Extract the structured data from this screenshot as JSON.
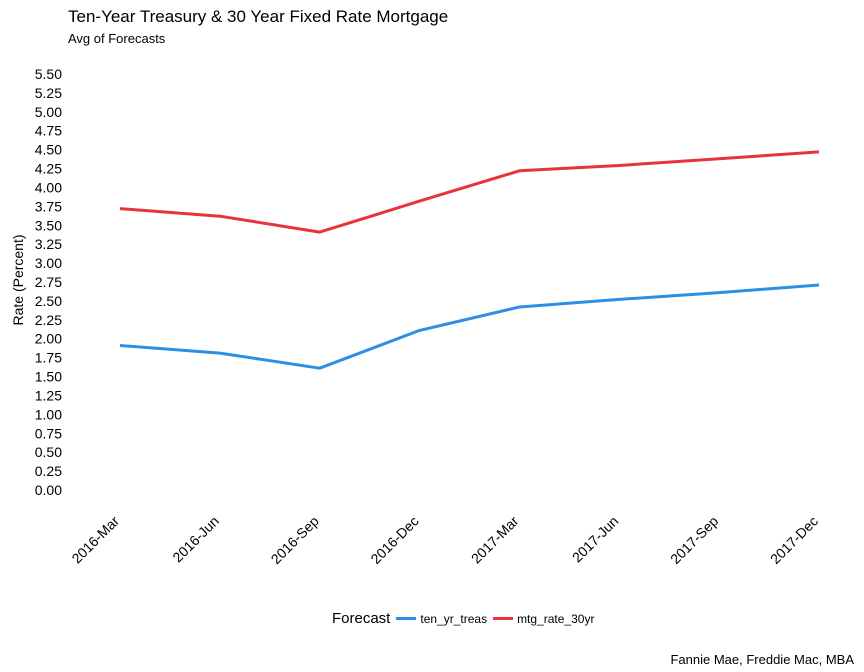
{
  "chart_data": {
    "type": "line",
    "title": "Ten-Year Treasury & 30 Year Fixed Rate Mortgage",
    "subtitle": "Avg of Forecasts",
    "xlabel": "",
    "ylabel": "Rate (Percent)",
    "categories": [
      "2016-Mar",
      "2016-Jun",
      "2016-Sep",
      "2016-Dec",
      "2017-Mar",
      "2017-Jun",
      "2017-Sep",
      "2017-Dec"
    ],
    "ylim": [
      0,
      5.5
    ],
    "y_ticks": [
      "0.00",
      "0.25",
      "0.50",
      "0.75",
      "1.00",
      "1.25",
      "1.50",
      "1.75",
      "2.00",
      "2.25",
      "2.50",
      "2.75",
      "3.00",
      "3.25",
      "3.50",
      "3.75",
      "4.00",
      "4.25",
      "4.50",
      "4.75",
      "5.00",
      "5.25",
      "5.50"
    ],
    "grid": false,
    "legend_position": "bottom",
    "legend_title": "Forecast",
    "series": [
      {
        "name": "ten_yr_treas",
        "color": "#2b8fe6",
        "values": [
          1.91,
          1.81,
          1.61,
          2.11,
          2.42,
          2.52,
          2.61,
          2.71
        ]
      },
      {
        "name": "mtg_rate_30yr",
        "color": "#e8333a",
        "values": [
          3.72,
          3.62,
          3.41,
          3.82,
          4.22,
          4.29,
          4.38,
          4.47
        ]
      }
    ],
    "caption": "Fannie Mae, Freddie Mac, MBA"
  }
}
